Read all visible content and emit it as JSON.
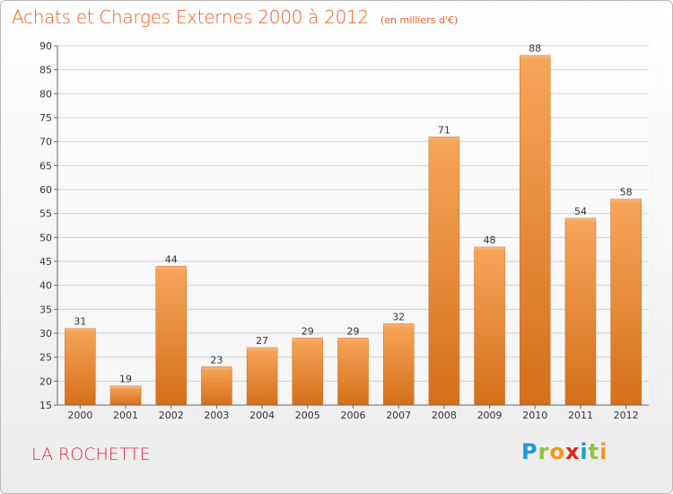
{
  "title": "Achats et Charges Externes 2000 à 2012",
  "subtitle": "(en milliers d'€)",
  "commune": "LA ROCHETTE",
  "logo": {
    "letters": [
      "P",
      "r",
      "o",
      "x",
      "i",
      "t",
      "i"
    ],
    "colors": [
      "#1e9ad6",
      "#8dc63f",
      "#f7941d",
      "#e2231a",
      "#1e9ad6",
      "#8dc63f",
      "#f7941d"
    ]
  },
  "colors": {
    "bar_light": "#f7a65a",
    "bar_dark": "#d56f1a",
    "title": "#ee5d21",
    "commune": "#d8294a"
  },
  "chart_data": {
    "type": "bar",
    "title": "Achats et Charges Externes 2000 à 2012",
    "subtitle": "(en milliers d'€)",
    "categories": [
      "2000",
      "2001",
      "2002",
      "2003",
      "2004",
      "2005",
      "2006",
      "2007",
      "2008",
      "2009",
      "2010",
      "2011",
      "2012"
    ],
    "values": [
      31,
      19,
      44,
      23,
      27,
      29,
      29,
      32,
      71,
      48,
      88,
      54,
      58
    ],
    "ylim": [
      15,
      90
    ],
    "yticks": [
      15,
      20,
      25,
      30,
      35,
      40,
      45,
      50,
      55,
      60,
      65,
      70,
      75,
      80,
      85,
      90
    ],
    "grid": true,
    "xlabel": "",
    "ylabel": ""
  }
}
